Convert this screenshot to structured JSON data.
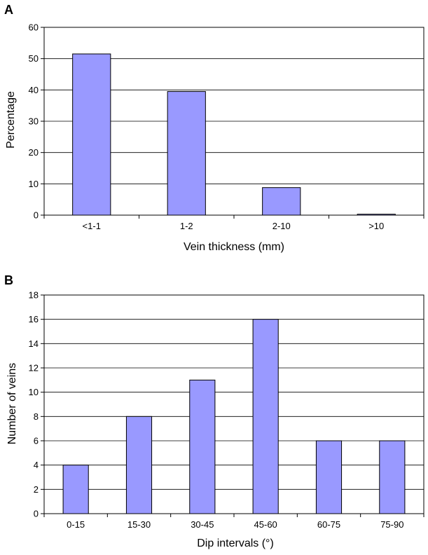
{
  "chart_data": [
    {
      "panel_label": "A",
      "type": "bar",
      "xlabel": "Vein thickness (mm)",
      "ylabel": "Percentage",
      "categories": [
        "<1-1",
        "1-2",
        "2-10",
        ">10"
      ],
      "values": [
        51.5,
        39.5,
        8.8,
        0.3
      ],
      "ylim": [
        0,
        60
      ],
      "yticks": [
        "0",
        "10",
        "20",
        "30",
        "40",
        "50",
        "60"
      ],
      "grid": true,
      "bar_color": "#9999ff"
    },
    {
      "panel_label": "B",
      "type": "bar",
      "xlabel": "Dip intervals (°)",
      "ylabel": "Number of veins",
      "categories": [
        "0-15",
        "15-30",
        "30-45",
        "45-60",
        "60-75",
        "75-90"
      ],
      "values": [
        4,
        8,
        11,
        16,
        6,
        6
      ],
      "ylim": [
        0,
        18
      ],
      "yticks": [
        "0",
        "2",
        "4",
        "6",
        "8",
        "10",
        "12",
        "14",
        "16",
        "18"
      ],
      "grid": true,
      "bar_color": "#9999ff"
    }
  ]
}
